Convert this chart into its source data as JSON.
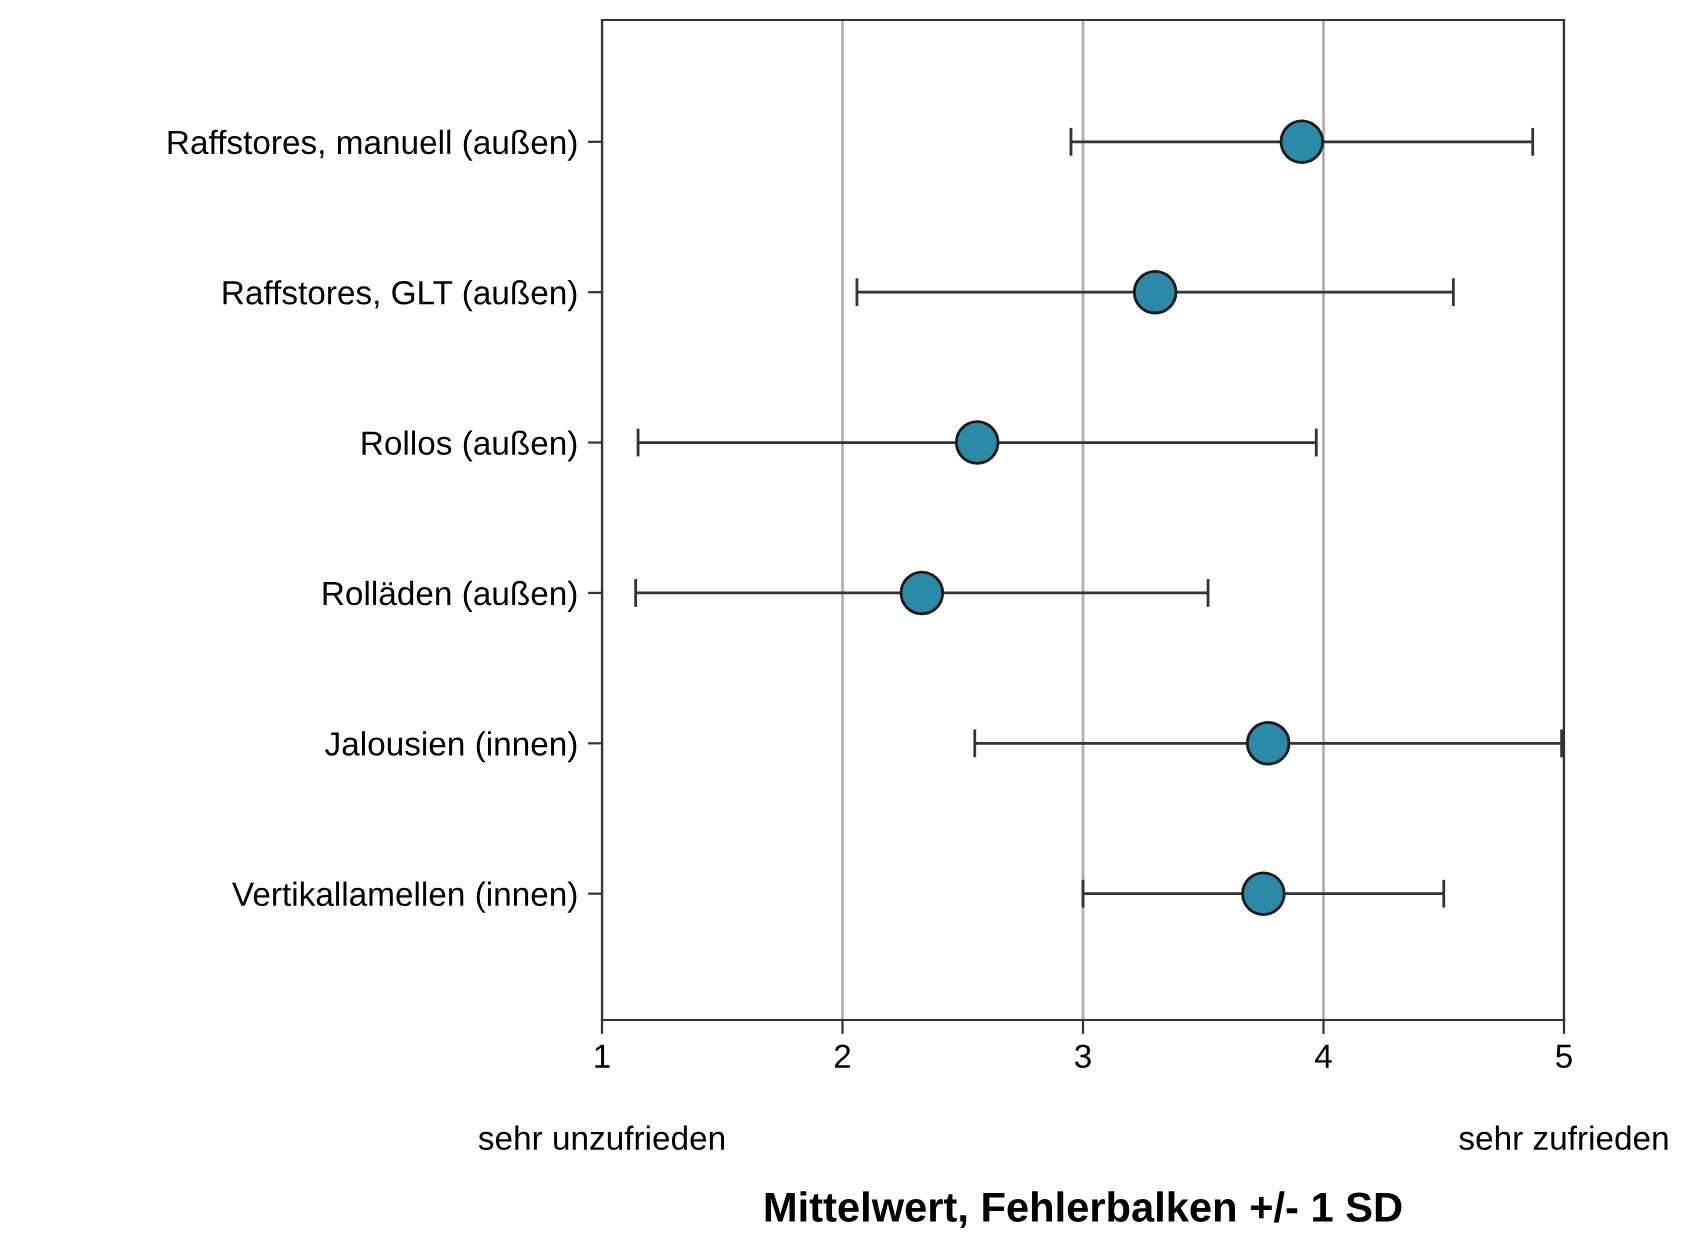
{
  "chart_data": {
    "type": "scatter",
    "orientation": "horizontal",
    "xlabel": "Mittelwert, Fehlerbalken +/- 1 SD",
    "categories": [
      "Raffstores, manuell (außen)",
      "Raffstores, GLT (außen)",
      "Rollos (außen)",
      "Rolläden (außen)",
      "Jalousien (innen)",
      "Vertikallamellen (innen)"
    ],
    "values": [
      3.91,
      3.3,
      2.56,
      2.33,
      3.77,
      3.75
    ],
    "errors": [
      0.96,
      1.24,
      1.41,
      1.19,
      1.22,
      0.75
    ],
    "color": "#2a8aa8",
    "marker": "circle",
    "xlim": [
      1,
      5
    ],
    "xticks": [
      1,
      2,
      3,
      4,
      5
    ],
    "grid": "x",
    "annotations": [
      "sehr unzufrieden",
      "sehr zufrieden"
    ]
  }
}
